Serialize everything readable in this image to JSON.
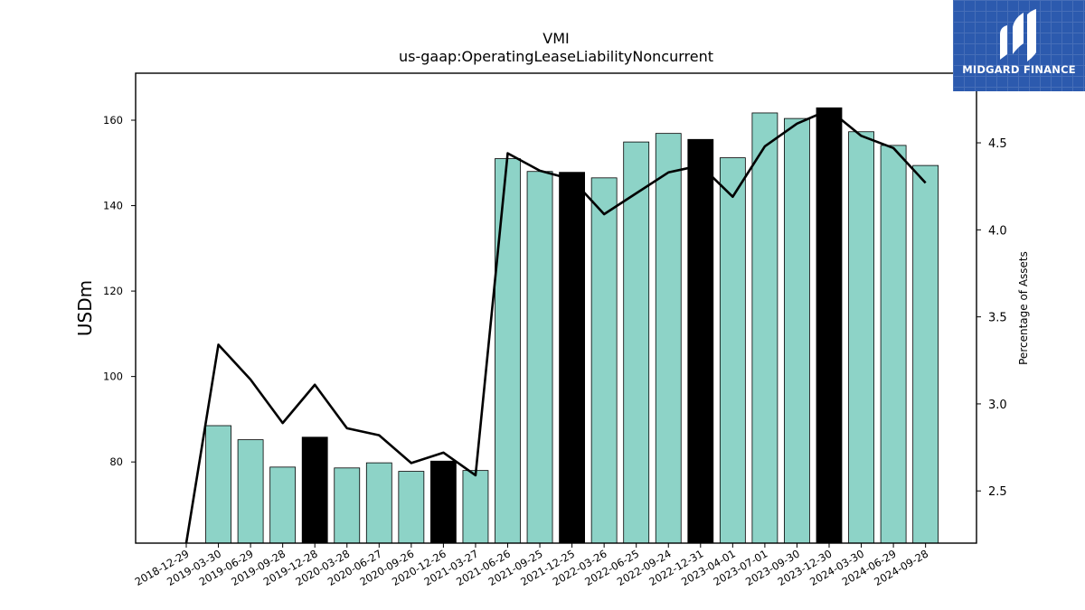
{
  "chart_data": {
    "type": "bar",
    "title": "VMI",
    "subtitle": "us-gaap:OperatingLeaseLiabilityNoncurrent",
    "ylabel": "USDm",
    "y2label": "Percentage of Assets",
    "ylim": [
      61,
      171
    ],
    "y2lim": [
      2.2,
      4.9
    ],
    "yticks": [
      80,
      100,
      120,
      140,
      160
    ],
    "y2ticks": [
      2.5,
      3.0,
      3.5,
      4.0,
      4.5
    ],
    "y2tick_labels": [
      "2.5",
      "3.0",
      "3.5",
      "4.0",
      "4.5"
    ],
    "grid": false,
    "categories": [
      "2018-12-29",
      "2019-03-30",
      "2019-06-29",
      "2019-09-28",
      "2019-12-28",
      "2020-03-28",
      "2020-06-27",
      "2020-09-26",
      "2020-12-26",
      "2021-03-27",
      "2021-06-26",
      "2021-09-25",
      "2021-12-25",
      "2022-03-26",
      "2022-06-25",
      "2022-09-24",
      "2022-12-31",
      "2023-04-01",
      "2023-07-01",
      "2023-09-30",
      "2023-12-30",
      "2024-03-30",
      "2024-06-29",
      "2024-09-28"
    ],
    "values": [
      null,
      88.5,
      85.2,
      78.8,
      85.8,
      78.6,
      79.8,
      77.8,
      80.2,
      78.0,
      151.0,
      148.0,
      147.8,
      146.5,
      154.9,
      156.9,
      155.5,
      151.2,
      161.7,
      160.4,
      162.9,
      157.3,
      154.1,
      149.4
    ],
    "highlight": [
      false,
      false,
      false,
      false,
      true,
      false,
      false,
      false,
      true,
      false,
      false,
      false,
      true,
      false,
      false,
      false,
      true,
      false,
      false,
      false,
      true,
      false,
      false,
      false
    ],
    "line_values": [
      2.2,
      3.34,
      3.14,
      2.89,
      3.11,
      2.86,
      2.82,
      2.66,
      2.72,
      2.59,
      4.44,
      4.34,
      4.29,
      4.09,
      4.21,
      4.33,
      4.37,
      4.19,
      4.48,
      4.61,
      4.69,
      4.54,
      4.47,
      4.27
    ],
    "colors": {
      "bar": "#8dd3c7",
      "bar_highlight": "#000000",
      "line": "#000000",
      "axis": "#000000"
    }
  },
  "logo": {
    "text": "MIDGARD FINANCE",
    "background": "#2c5aae"
  }
}
